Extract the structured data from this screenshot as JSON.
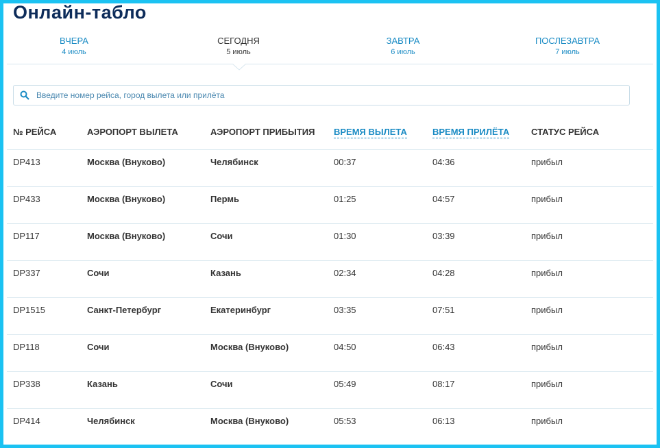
{
  "header": {
    "title": "Онлайн-табло"
  },
  "tabs": [
    {
      "label": "ВЧЕРА",
      "date": "4 июль"
    },
    {
      "label": "СЕГОДНЯ",
      "date": "5 июль"
    },
    {
      "label": "ЗАВТРА",
      "date": "6 июль"
    },
    {
      "label": "ПОСЛЕЗАВТРА",
      "date": "7 июль"
    }
  ],
  "search": {
    "placeholder": "Введите номер рейса, город вылета или прилёта"
  },
  "table": {
    "columns": [
      "№ РЕЙСА",
      "АЭРОПОРТ ВЫЛЕТА",
      "АЭРОПОРТ ПРИБЫТИЯ",
      "ВРЕМЯ ВЫЛЕТА",
      "ВРЕМЯ ПРИЛЁТА",
      "СТАТУС РЕЙСА"
    ],
    "rows": [
      [
        "DP413",
        "Москва (Внуково)",
        "Челябинск",
        "00:37",
        "04:36",
        "прибыл"
      ],
      [
        "DP433",
        "Москва (Внуково)",
        "Пермь",
        "01:25",
        "04:57",
        "прибыл"
      ],
      [
        "DP117",
        "Москва (Внуково)",
        "Сочи",
        "01:30",
        "03:39",
        "прибыл"
      ],
      [
        "DP337",
        "Сочи",
        "Казань",
        "02:34",
        "04:28",
        "прибыл"
      ],
      [
        "DP1515",
        "Санкт-Петербург",
        "Екатеринбург",
        "03:35",
        "07:51",
        "прибыл"
      ],
      [
        "DP118",
        "Сочи",
        "Москва (Внуково)",
        "04:50",
        "06:43",
        "прибыл"
      ],
      [
        "DP338",
        "Казань",
        "Сочи",
        "05:49",
        "08:17",
        "прибыл"
      ],
      [
        "DP414",
        "Челябинск",
        "Москва (Внуково)",
        "05:53",
        "06:13",
        "прибыл"
      ]
    ]
  }
}
